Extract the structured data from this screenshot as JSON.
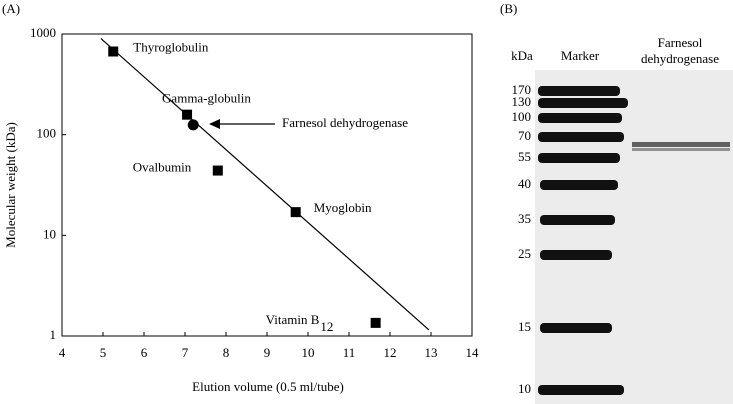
{
  "chart_data": {
    "type": "scatter",
    "panel_label": "(A)",
    "x_label": "Elution volume (0.5 ml/tube)",
    "y_label": "Molecular weight (kDa)",
    "xlim": [
      4,
      14
    ],
    "xticks": [
      4,
      5,
      6,
      7,
      8,
      9,
      10,
      11,
      12,
      13,
      14
    ],
    "ylim": [
      1,
      1000
    ],
    "yticks": [
      1,
      10,
      100,
      1000
    ],
    "y_scale": "log",
    "color": "#000000",
    "points": [
      {
        "label": "Thyroglobulin",
        "x": 5.25,
        "y": 670,
        "marker": "square"
      },
      {
        "label": "Gamma-globulin",
        "x": 7.05,
        "y": 158,
        "marker": "square"
      },
      {
        "x": 7.2,
        "y": 125,
        "marker": "circle"
      },
      {
        "label": "Ovalbumin",
        "x": 7.8,
        "y": 44,
        "marker": "square"
      },
      {
        "label": "Myoglobin",
        "x": 9.7,
        "y": 17,
        "marker": "square"
      },
      {
        "label": "Vitamin B",
        "label_subscript": "12",
        "x": 11.65,
        "y": 1.35,
        "marker": "square"
      }
    ],
    "fit_line": {
      "x": [
        4.95,
        12.95
      ],
      "y": [
        900,
        1.15
      ]
    },
    "annotation": "Farnesol dehydrogenase"
  },
  "gel": {
    "panel_label": "(B)",
    "unit": "kDa",
    "lane_1": "Marker",
    "lane_2": [
      "Farnesol",
      "dehydrogenase"
    ],
    "ladder": [
      "170",
      "130",
      "100",
      "70",
      "55",
      "40",
      "35",
      "25",
      "15",
      "10"
    ]
  }
}
